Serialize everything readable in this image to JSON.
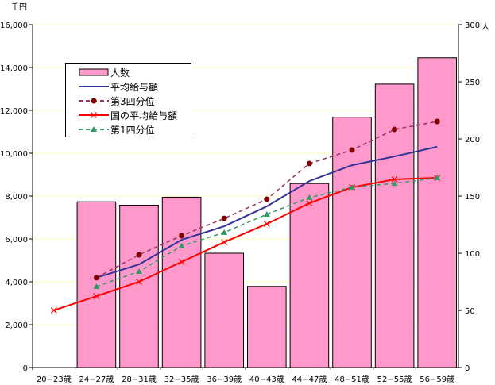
{
  "chart_data": {
    "type": "bar+line",
    "left_unit": "千円",
    "right_unit": "人",
    "categories": [
      "20−23歳",
      "24−27歳",
      "28−31歳",
      "32−35歳",
      "36−39歳",
      "40−43歳",
      "44−47歳",
      "48−51歳",
      "52−55歳",
      "56−59歳"
    ],
    "left_ylim": [
      0,
      16000
    ],
    "left_ticks": [
      "0",
      "2,000",
      "4,000",
      "6,000",
      "8,000",
      "10,000",
      "12,000",
      "14,000",
      "16,000"
    ],
    "right_ylim": [
      0,
      300
    ],
    "right_ticks": [
      "0",
      "50",
      "100",
      "150",
      "200",
      "250",
      "300"
    ],
    "bars": {
      "name": "人数",
      "color": "#ff99cc",
      "values": [
        null,
        145,
        142,
        149,
        100,
        71,
        161,
        219,
        248,
        271
      ]
    },
    "series": [
      {
        "name": "平均給与額",
        "color": "#333399",
        "style": "solid",
        "marker": "none",
        "values": [
          null,
          4190,
          4810,
          5960,
          6590,
          7520,
          8700,
          9440,
          9850,
          10300
        ]
      },
      {
        "name": "第3四分位",
        "color": "#993366",
        "style": "dashed",
        "marker": "circle",
        "marker_color": "#800000",
        "values": [
          null,
          4190,
          5260,
          6150,
          6960,
          7850,
          9520,
          10150,
          11110,
          11480
        ]
      },
      {
        "name": "国の平均給与額",
        "color": "#ff0000",
        "style": "solid",
        "marker": "x",
        "marker_color": "#ff0000",
        "values": [
          2670,
          3330,
          4000,
          4930,
          5850,
          6700,
          7670,
          8410,
          8780,
          8850
        ]
      },
      {
        "name": "第1四分位",
        "color": "#339966",
        "style": "dashed",
        "marker": "triangle",
        "marker_color": "#339966",
        "values": [
          null,
          3780,
          4480,
          5670,
          6300,
          7150,
          7930,
          8410,
          8590,
          8850
        ]
      }
    ],
    "grid": true,
    "legend_position": "top-left"
  }
}
